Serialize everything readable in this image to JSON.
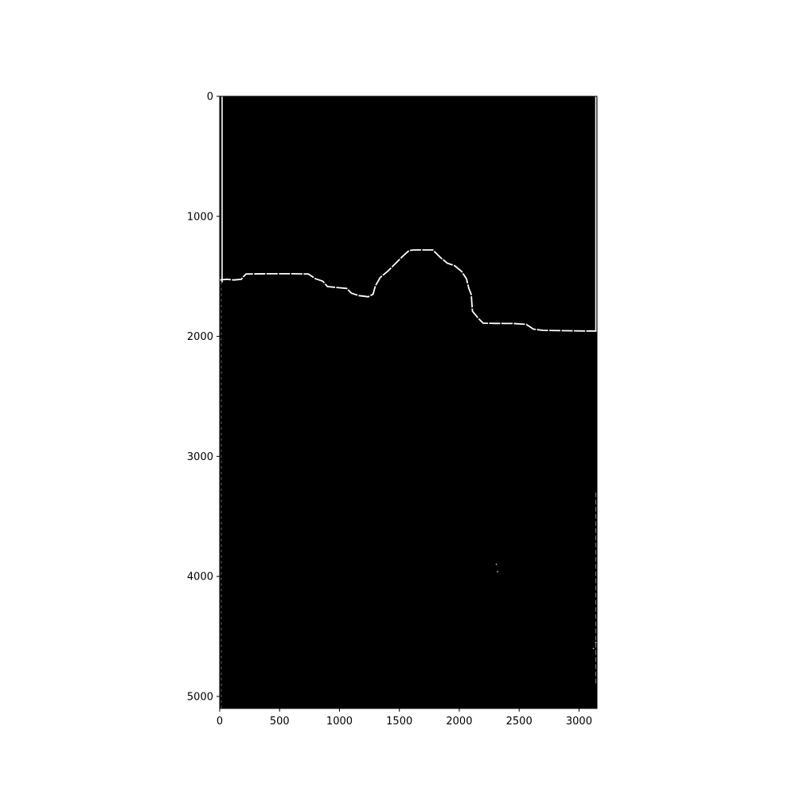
{
  "chart_data": {
    "type": "heatmap",
    "title": "",
    "xlabel": "",
    "ylabel": "",
    "xlim": [
      0,
      3150
    ],
    "ylim": [
      5100,
      0
    ],
    "y_inverted": true,
    "grid": false,
    "colormap": "gray",
    "background_color": "#000000",
    "edge_color": "#ffffff",
    "x_ticks": [
      0,
      500,
      1000,
      1500,
      2000,
      2500,
      3000
    ],
    "x_tick_labels": [
      "0",
      "500",
      "1000",
      "1500",
      "2000",
      "2500",
      "3000"
    ],
    "y_ticks": [
      0,
      1000,
      2000,
      3000,
      4000,
      5000
    ],
    "y_tick_labels": [
      "0",
      "1000",
      "2000",
      "3000",
      "4000",
      "5000"
    ],
    "edge_points": [
      [
        0,
        1530
      ],
      [
        60,
        1525
      ],
      [
        120,
        1530
      ],
      [
        180,
        1525
      ],
      [
        200,
        1500
      ],
      [
        220,
        1480
      ],
      [
        400,
        1478
      ],
      [
        600,
        1478
      ],
      [
        740,
        1480
      ],
      [
        800,
        1520
      ],
      [
        860,
        1540
      ],
      [
        900,
        1585
      ],
      [
        1000,
        1595
      ],
      [
        1060,
        1600
      ],
      [
        1100,
        1640
      ],
      [
        1160,
        1660
      ],
      [
        1240,
        1670
      ],
      [
        1280,
        1650
      ],
      [
        1300,
        1580
      ],
      [
        1340,
        1510
      ],
      [
        1400,
        1460
      ],
      [
        1460,
        1400
      ],
      [
        1520,
        1340
      ],
      [
        1580,
        1285
      ],
      [
        1620,
        1280
      ],
      [
        1780,
        1280
      ],
      [
        1840,
        1340
      ],
      [
        1900,
        1390
      ],
      [
        1960,
        1410
      ],
      [
        2020,
        1460
      ],
      [
        2060,
        1520
      ],
      [
        2080,
        1600
      ],
      [
        2100,
        1650
      ],
      [
        2110,
        1790
      ],
      [
        2160,
        1850
      ],
      [
        2200,
        1890
      ],
      [
        2300,
        1892
      ],
      [
        2450,
        1893
      ],
      [
        2560,
        1900
      ],
      [
        2620,
        1940
      ],
      [
        2700,
        1950
      ],
      [
        2900,
        1953
      ],
      [
        3050,
        1955
      ],
      [
        3150,
        1955
      ]
    ],
    "left_border_x": 20,
    "right_border_x": 3140,
    "speckle_points": [
      [
        2320,
        3960
      ],
      [
        2310,
        3900
      ],
      [
        3120,
        4600
      ],
      [
        3140,
        4550
      ]
    ]
  }
}
